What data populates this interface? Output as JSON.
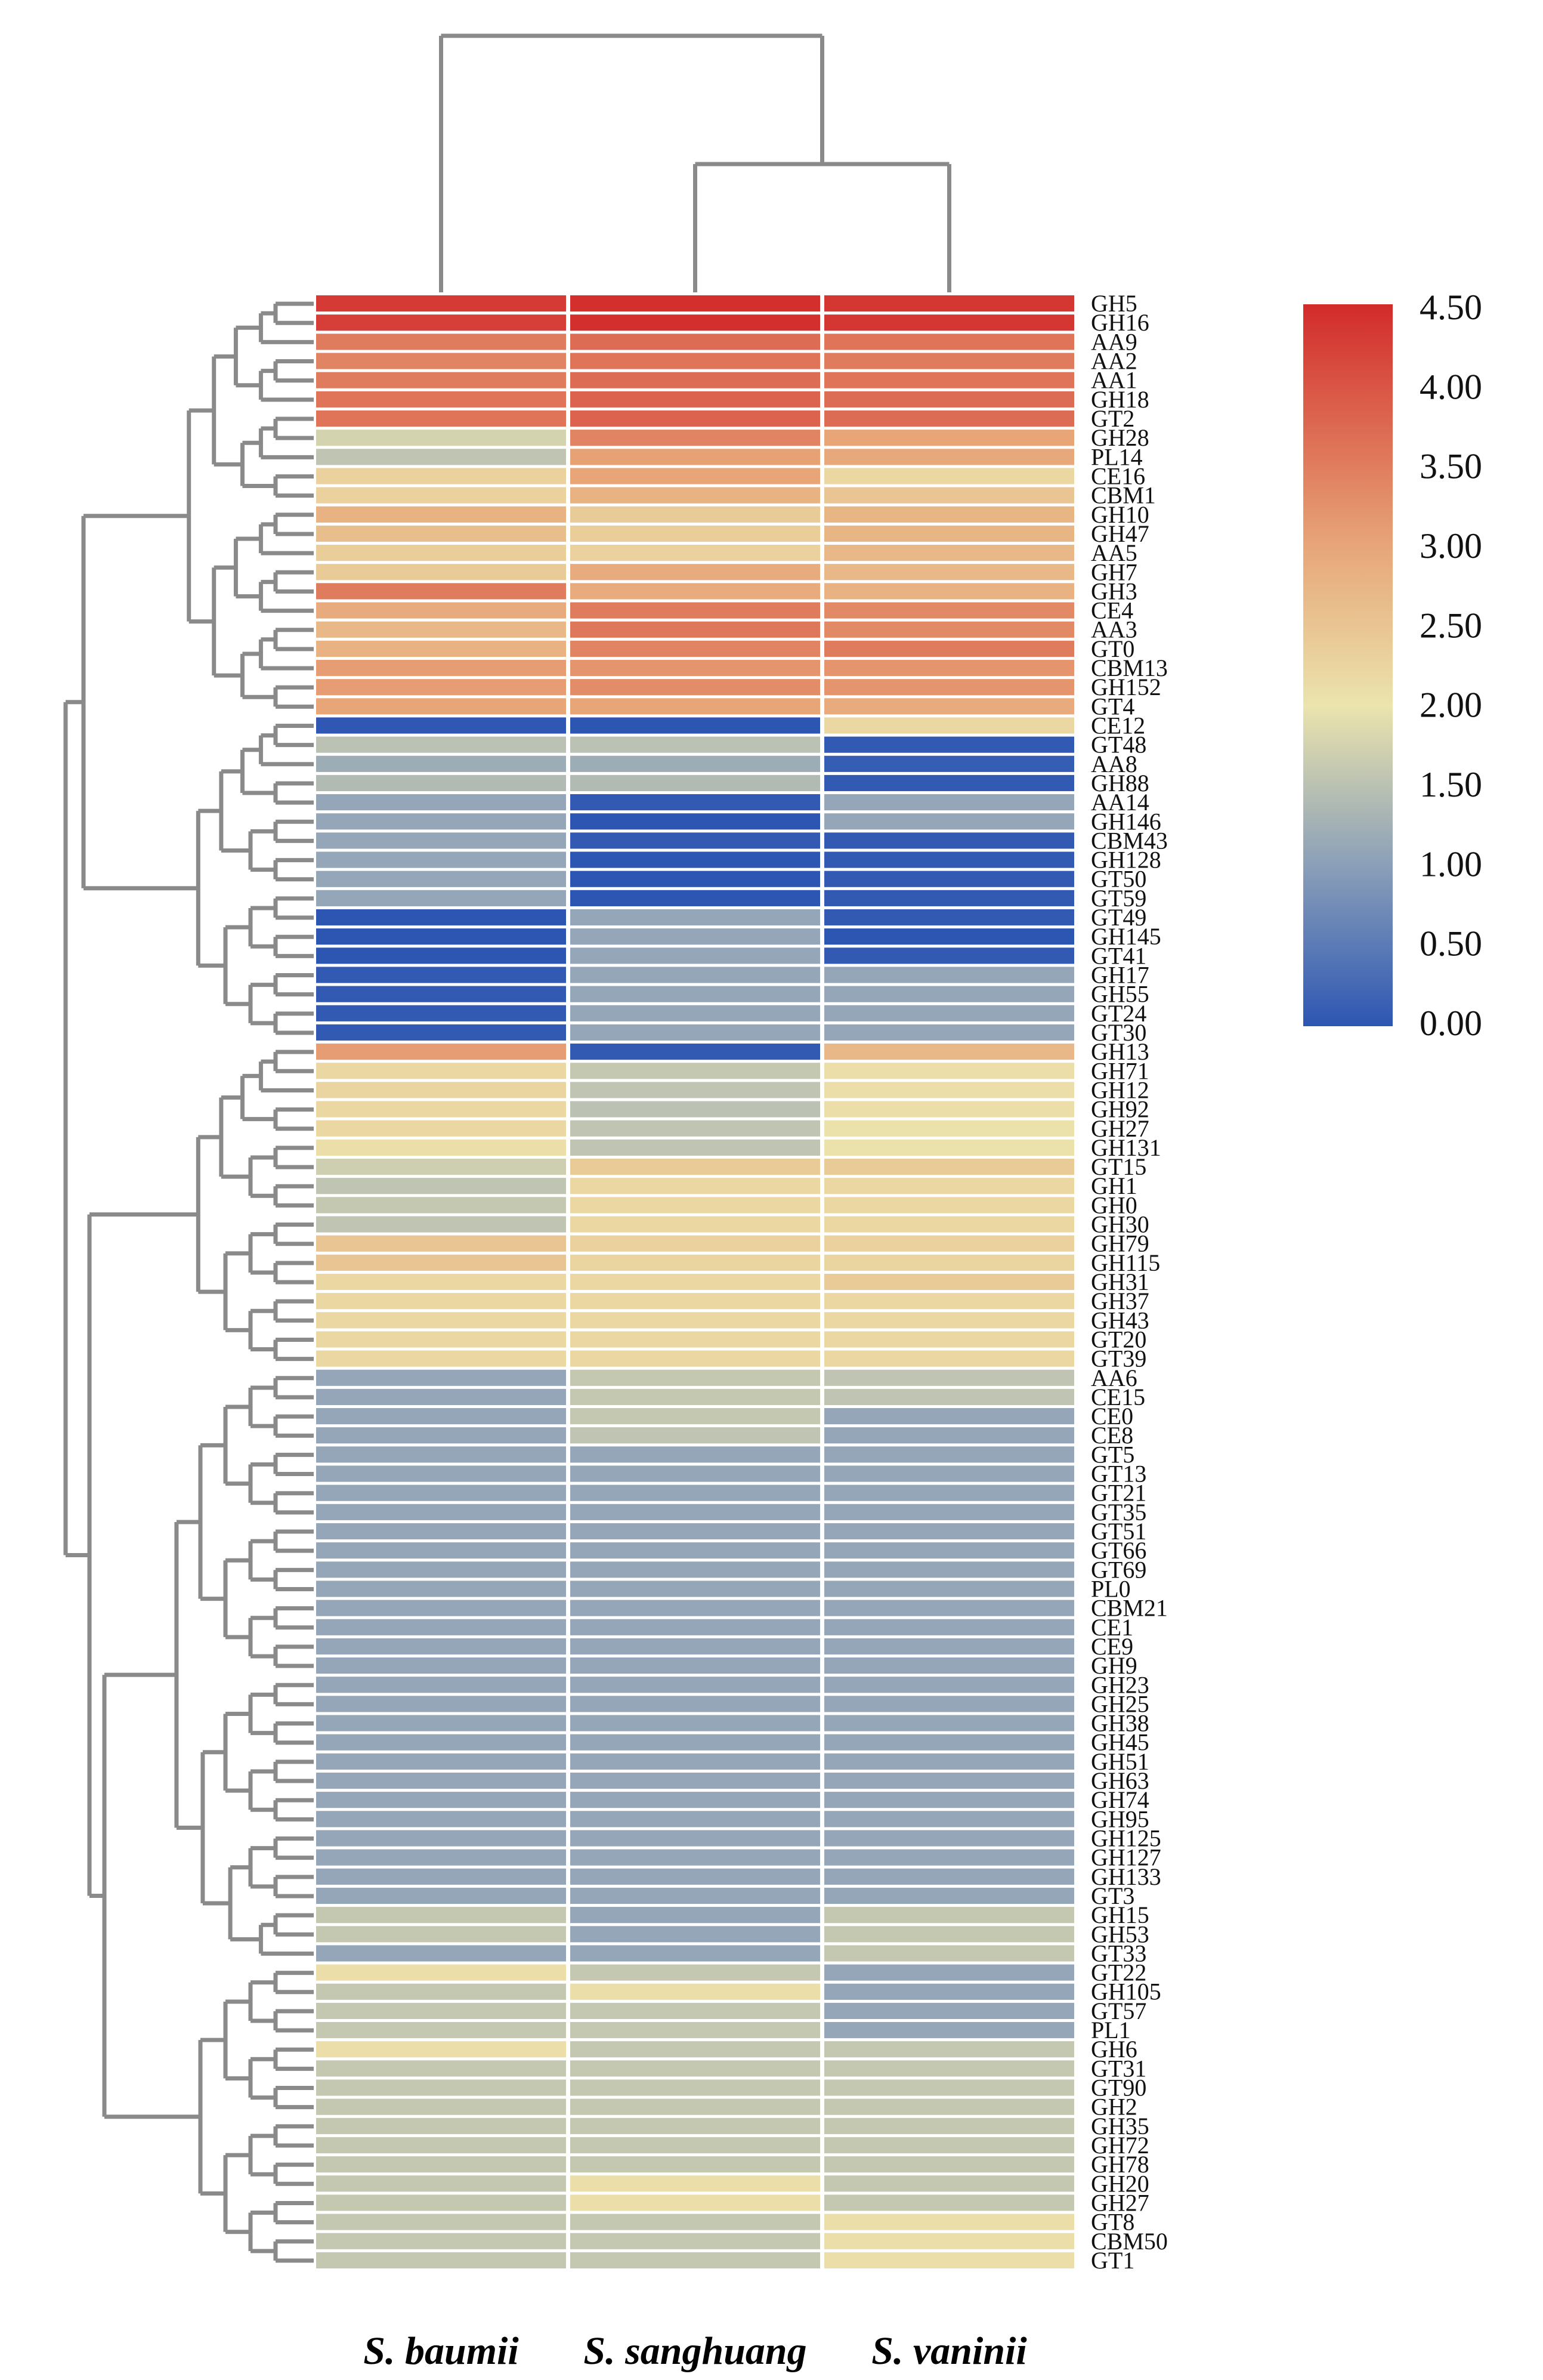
{
  "chart_data": {
    "type": "heatmap",
    "title": "",
    "columns": [
      "S. baumii",
      "S. sanghuang",
      "S. vaninii"
    ],
    "rows": [
      "GH5",
      "GH16",
      "AA9",
      "AA2",
      "AA1",
      "GH18",
      "GT2",
      "GH28",
      "PL14",
      "CE16",
      "CBM1",
      "GH10",
      "GH47",
      "AA5",
      "GH7",
      "GH3",
      "CE4",
      "AA3",
      "GT0",
      "CBM13",
      "GH152",
      "GT4",
      "CE12",
      "GT48",
      "AA8",
      "GH88",
      "AA14",
      "GH146",
      "CBM43",
      "GH128",
      "GT50",
      "GT59",
      "GT49",
      "GH145",
      "GT41",
      "GH17",
      "GH55",
      "GT24",
      "GT30",
      "GH13",
      "GH71",
      "GH12",
      "GH92",
      "GH27",
      "GH131",
      "GT15",
      "GH1",
      "GH0",
      "GH30",
      "GH79",
      "GH115",
      "GH31",
      "GH37",
      "GH43",
      "GT20",
      "GT39",
      "AA6",
      "CE15",
      "CE0",
      "CE8",
      "GT5",
      "GT13",
      "GT21",
      "GT35",
      "GT51",
      "GT66",
      "GT69",
      "PL0",
      "CBM21",
      "CE1",
      "CE9",
      "GH9",
      "GH23",
      "GH25",
      "GH38",
      "GH45",
      "GH51",
      "GH63",
      "GH74",
      "GH95",
      "GH125",
      "GH127",
      "GH133",
      "GT3",
      "GH15",
      "GH53",
      "GT33",
      "GT22",
      "GH105",
      "GT57",
      "PL1",
      "GH6",
      "GT31",
      "GT90",
      "GH2",
      "GH35",
      "GH72",
      "GH78",
      "GH20",
      "GH27",
      "GT8",
      "CBM50",
      "GT1"
    ],
    "values": [
      [
        4.3,
        4.45,
        4.35
      ],
      [
        4.25,
        4.45,
        4.35
      ],
      [
        3.5,
        3.7,
        3.6
      ],
      [
        3.4,
        3.6,
        3.5
      ],
      [
        3.5,
        3.7,
        3.6
      ],
      [
        3.6,
        3.8,
        3.7
      ],
      [
        3.6,
        3.8,
        3.7
      ],
      [
        1.75,
        3.4,
        3.0
      ],
      [
        1.55,
        3.05,
        2.95
      ],
      [
        2.3,
        3.0,
        2.2
      ],
      [
        2.3,
        2.8,
        2.5
      ],
      [
        2.8,
        2.4,
        2.75
      ],
      [
        2.6,
        2.35,
        2.75
      ],
      [
        2.35,
        2.3,
        2.7
      ],
      [
        2.4,
        2.9,
        2.7
      ],
      [
        3.5,
        2.9,
        2.8
      ],
      [
        2.9,
        3.5,
        3.35
      ],
      [
        2.7,
        3.55,
        3.35
      ],
      [
        2.8,
        3.4,
        3.5
      ],
      [
        3.1,
        3.2,
        3.2
      ],
      [
        3.1,
        3.3,
        3.2
      ],
      [
        3.0,
        3.0,
        2.9
      ],
      [
        0.02,
        0.0,
        2.2
      ],
      [
        1.5,
        1.5,
        0.05
      ],
      [
        1.2,
        1.2,
        0.1
      ],
      [
        1.4,
        1.4,
        0.05
      ],
      [
        1.1,
        0.05,
        1.1
      ],
      [
        1.1,
        0.0,
        1.1
      ],
      [
        1.1,
        0.05,
        0.05
      ],
      [
        1.1,
        0.0,
        0.05
      ],
      [
        1.1,
        0.0,
        0.05
      ],
      [
        1.1,
        0.0,
        0.05
      ],
      [
        0.0,
        1.1,
        0.05
      ],
      [
        0.0,
        1.1,
        0.0
      ],
      [
        0.0,
        1.1,
        0.05
      ],
      [
        0.05,
        1.1,
        1.1
      ],
      [
        0.05,
        1.1,
        1.1
      ],
      [
        0.05,
        1.1,
        1.1
      ],
      [
        0.05,
        1.1,
        1.1
      ],
      [
        3.1,
        0.05,
        2.7
      ],
      [
        2.2,
        1.6,
        2.1
      ],
      [
        2.25,
        1.55,
        2.1
      ],
      [
        2.2,
        1.5,
        2.1
      ],
      [
        2.2,
        1.55,
        2.05
      ],
      [
        2.1,
        1.55,
        2.05
      ],
      [
        1.7,
        2.4,
        2.4
      ],
      [
        1.55,
        2.2,
        2.2
      ],
      [
        1.6,
        2.2,
        2.2
      ],
      [
        1.55,
        2.2,
        2.2
      ],
      [
        2.5,
        2.3,
        2.3
      ],
      [
        2.5,
        2.25,
        2.25
      ],
      [
        2.2,
        2.2,
        2.4
      ],
      [
        2.2,
        2.2,
        2.2
      ],
      [
        2.2,
        2.2,
        2.2
      ],
      [
        2.2,
        2.2,
        2.2
      ],
      [
        2.2,
        2.2,
        2.2
      ],
      [
        1.1,
        1.6,
        1.55
      ],
      [
        1.1,
        1.6,
        1.55
      ],
      [
        1.1,
        1.6,
        1.1
      ],
      [
        1.1,
        1.55,
        1.1
      ],
      [
        1.1,
        1.1,
        1.1
      ],
      [
        1.1,
        1.1,
        1.1
      ],
      [
        1.1,
        1.1,
        1.1
      ],
      [
        1.1,
        1.1,
        1.1
      ],
      [
        1.1,
        1.1,
        1.1
      ],
      [
        1.1,
        1.1,
        1.1
      ],
      [
        1.1,
        1.1,
        1.1
      ],
      [
        1.1,
        1.1,
        1.1
      ],
      [
        1.1,
        1.1,
        1.1
      ],
      [
        1.1,
        1.1,
        1.1
      ],
      [
        1.1,
        1.1,
        1.1
      ],
      [
        1.1,
        1.1,
        1.1
      ],
      [
        1.1,
        1.1,
        1.1
      ],
      [
        1.1,
        1.1,
        1.1
      ],
      [
        1.1,
        1.1,
        1.1
      ],
      [
        1.1,
        1.1,
        1.1
      ],
      [
        1.1,
        1.1,
        1.1
      ],
      [
        1.1,
        1.1,
        1.1
      ],
      [
        1.1,
        1.1,
        1.1
      ],
      [
        1.1,
        1.1,
        1.1
      ],
      [
        1.1,
        1.1,
        1.1
      ],
      [
        1.1,
        1.1,
        1.1
      ],
      [
        1.1,
        1.1,
        1.1
      ],
      [
        1.1,
        1.1,
        1.1
      ],
      [
        1.6,
        1.1,
        1.6
      ],
      [
        1.6,
        1.1,
        1.6
      ],
      [
        1.1,
        1.1,
        1.6
      ],
      [
        2.1,
        1.6,
        1.1
      ],
      [
        1.6,
        2.1,
        1.1
      ],
      [
        1.6,
        1.6,
        1.1
      ],
      [
        1.6,
        1.6,
        1.1
      ],
      [
        2.1,
        1.6,
        1.6
      ],
      [
        1.6,
        1.6,
        1.6
      ],
      [
        1.6,
        1.6,
        1.6
      ],
      [
        1.6,
        1.6,
        1.6
      ],
      [
        1.6,
        1.6,
        1.6
      ],
      [
        1.6,
        1.6,
        1.6
      ],
      [
        1.6,
        1.6,
        1.6
      ],
      [
        1.6,
        2.1,
        1.6
      ],
      [
        1.6,
        2.1,
        1.6
      ],
      [
        1.6,
        1.6,
        2.1
      ],
      [
        1.6,
        1.6,
        2.1
      ],
      [
        1.6,
        1.6,
        2.1
      ]
    ],
    "colorscale": {
      "min": 0.0,
      "max": 4.5,
      "ticks": [
        "4.50",
        "4.00",
        "3.50",
        "3.00",
        "2.50",
        "2.00",
        "1.50",
        "1.00",
        "0.50",
        "0.00"
      ],
      "stops": [
        {
          "value": 0.0,
          "color": "#2d56b3"
        },
        {
          "value": 1.0,
          "color": "#8a9fb8"
        },
        {
          "value": 2.0,
          "color": "#ebe4ad"
        },
        {
          "value": 3.0,
          "color": "#e7a578"
        },
        {
          "value": 4.5,
          "color": "#d22b2a"
        }
      ]
    },
    "dendrogram_color": "#8a8a8a",
    "legend": "right"
  }
}
